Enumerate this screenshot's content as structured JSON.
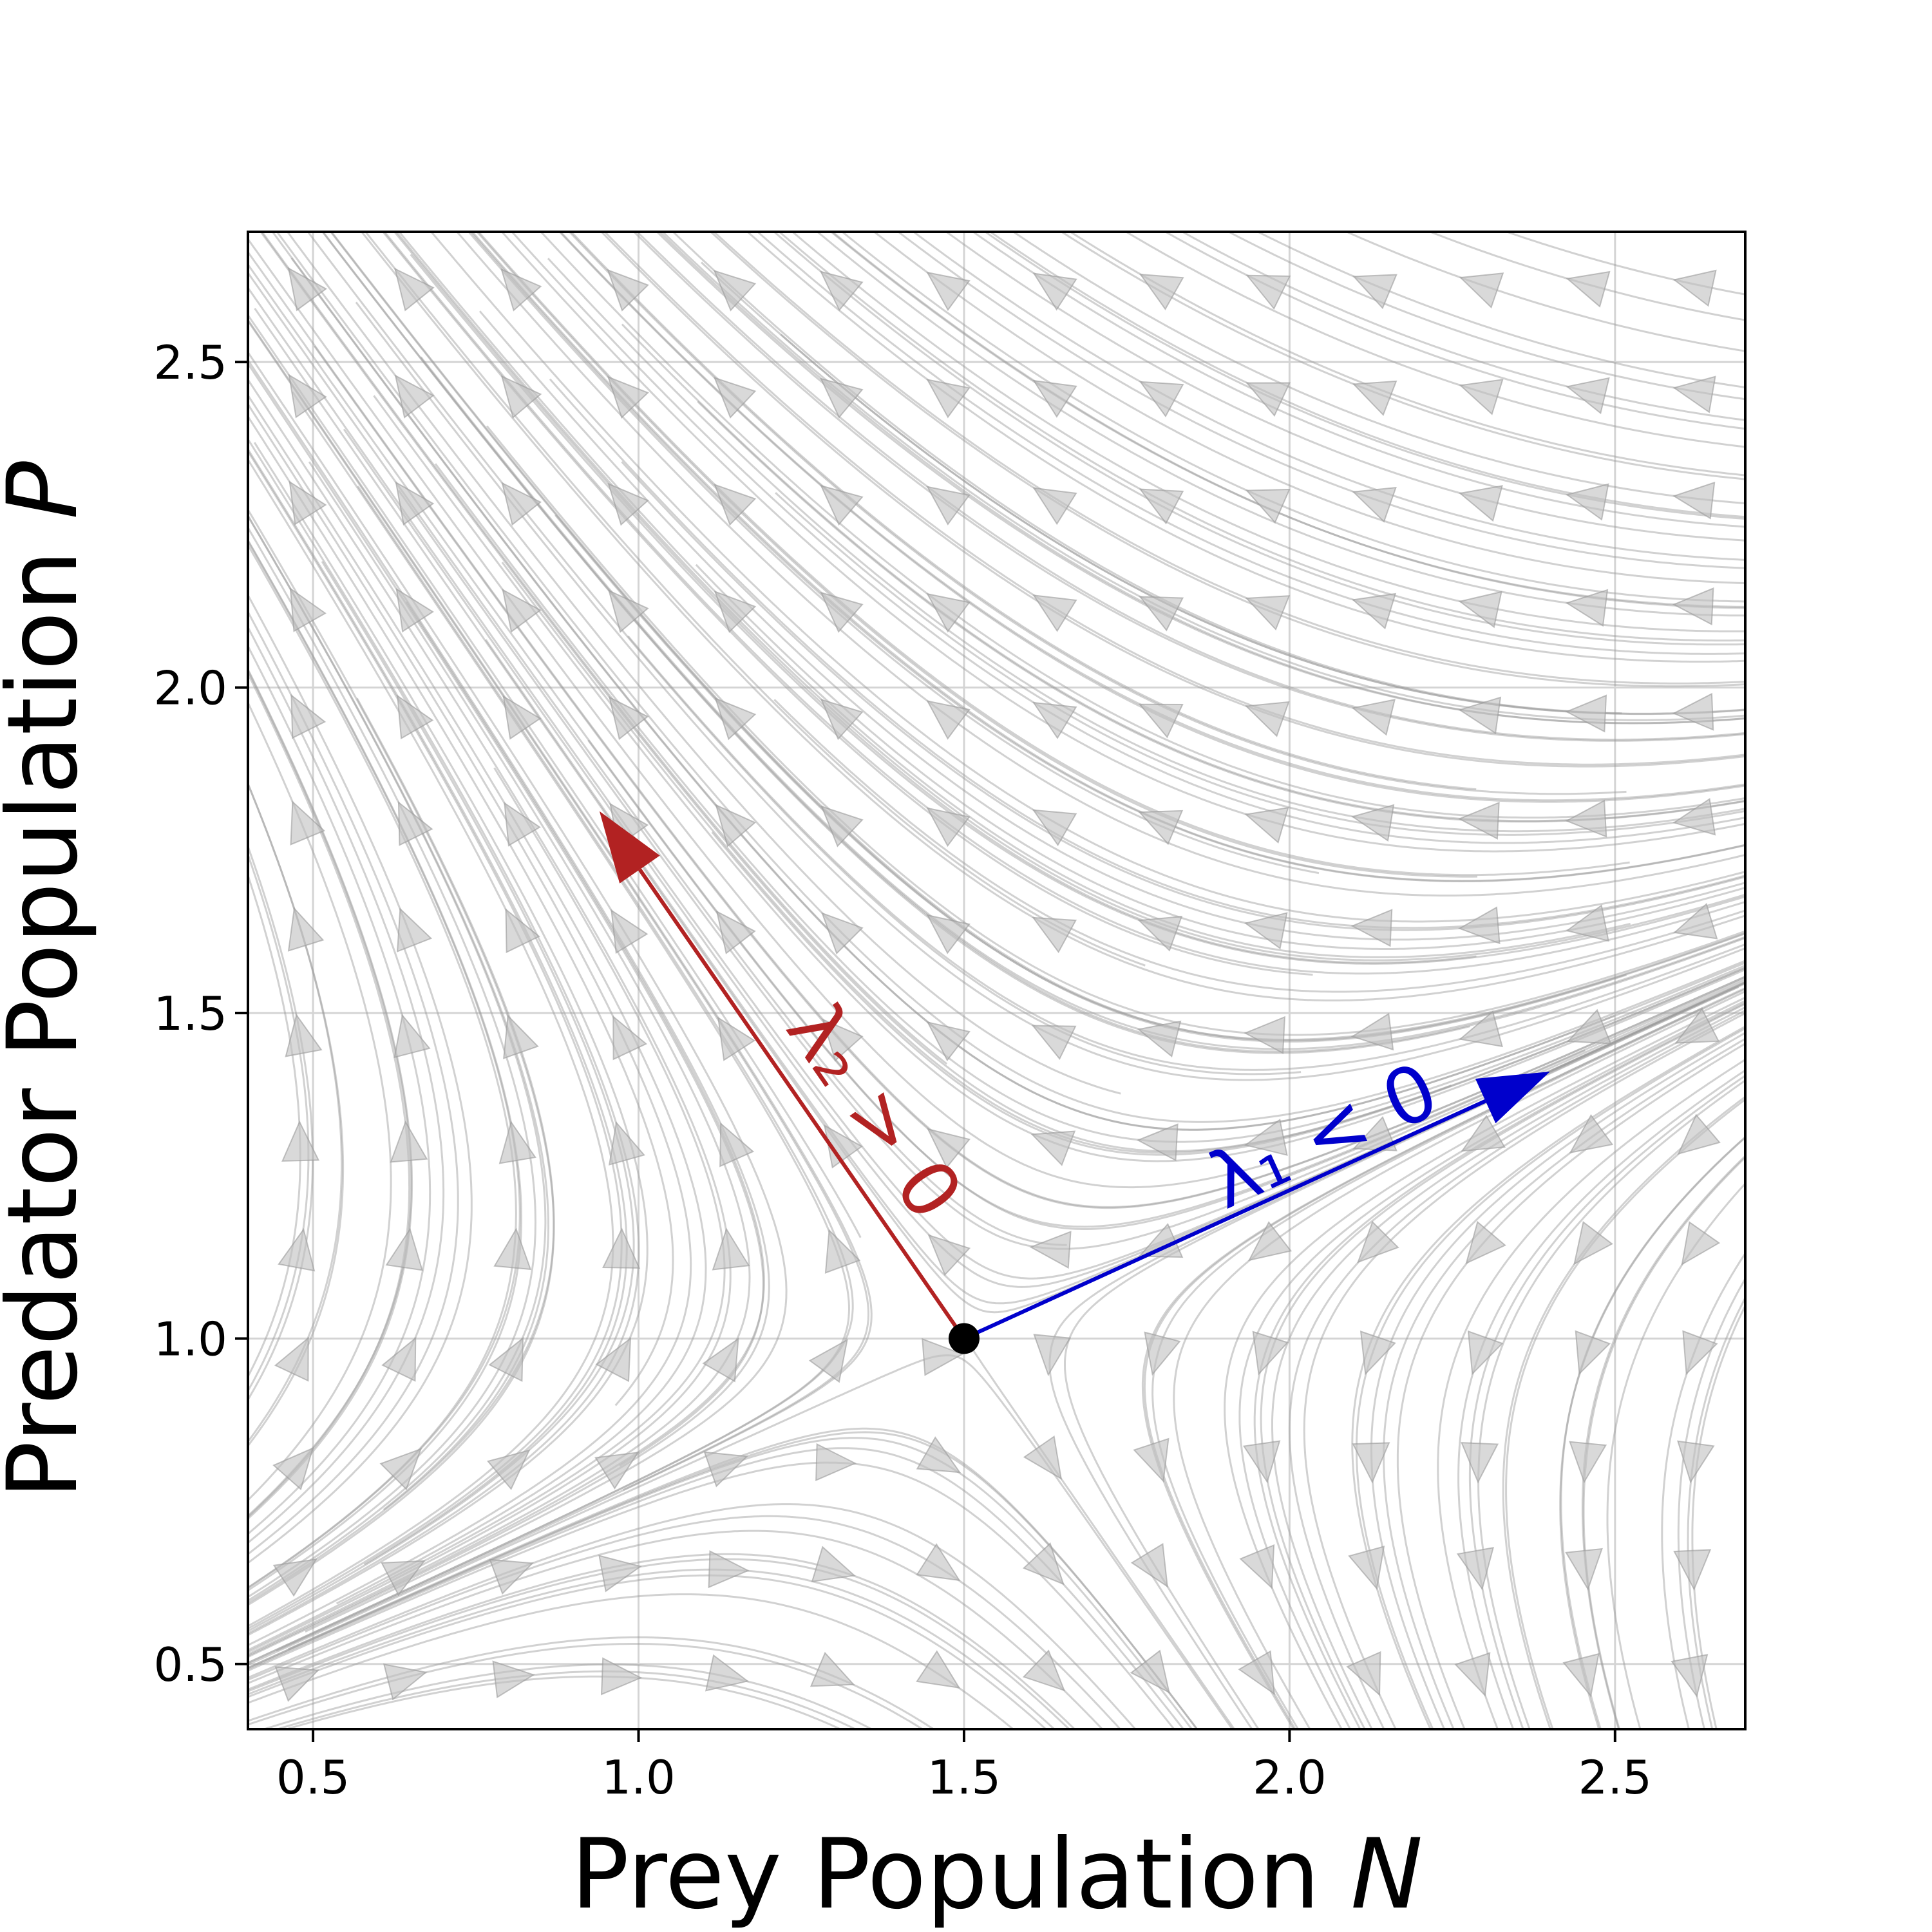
{
  "chart_data": {
    "type": "streamplot",
    "xlabel": "Prey Population",
    "xlabel_var": "N",
    "ylabel": "Predator Population",
    "ylabel_var": "P",
    "xlim": [
      0.4,
      2.7
    ],
    "ylim": [
      0.4,
      2.7
    ],
    "xticks": [
      0.5,
      1.0,
      1.5,
      2.0,
      2.5
    ],
    "yticks": [
      0.5,
      1.0,
      1.5,
      2.0,
      2.5
    ],
    "xtick_labels": [
      "0.5",
      "1.0",
      "1.5",
      "2.0",
      "2.5"
    ],
    "ytick_labels": [
      "0.5",
      "1.0",
      "1.5",
      "2.0",
      "2.5"
    ],
    "grid": true,
    "equilibrium": {
      "x": 1.5,
      "y": 1.0,
      "color": "#000000"
    },
    "eigenvectors": [
      {
        "label": "λ₁ < 0",
        "color": "#0000cc",
        "from": [
          1.5,
          1.0
        ],
        "to": [
          2.4,
          1.41
        ]
      },
      {
        "label": "λ₂ > 0",
        "color": "#b22222",
        "from": [
          1.5,
          1.0
        ],
        "to": [
          0.94,
          1.81
        ]
      }
    ],
    "stream_color": "#9a9a9a"
  }
}
